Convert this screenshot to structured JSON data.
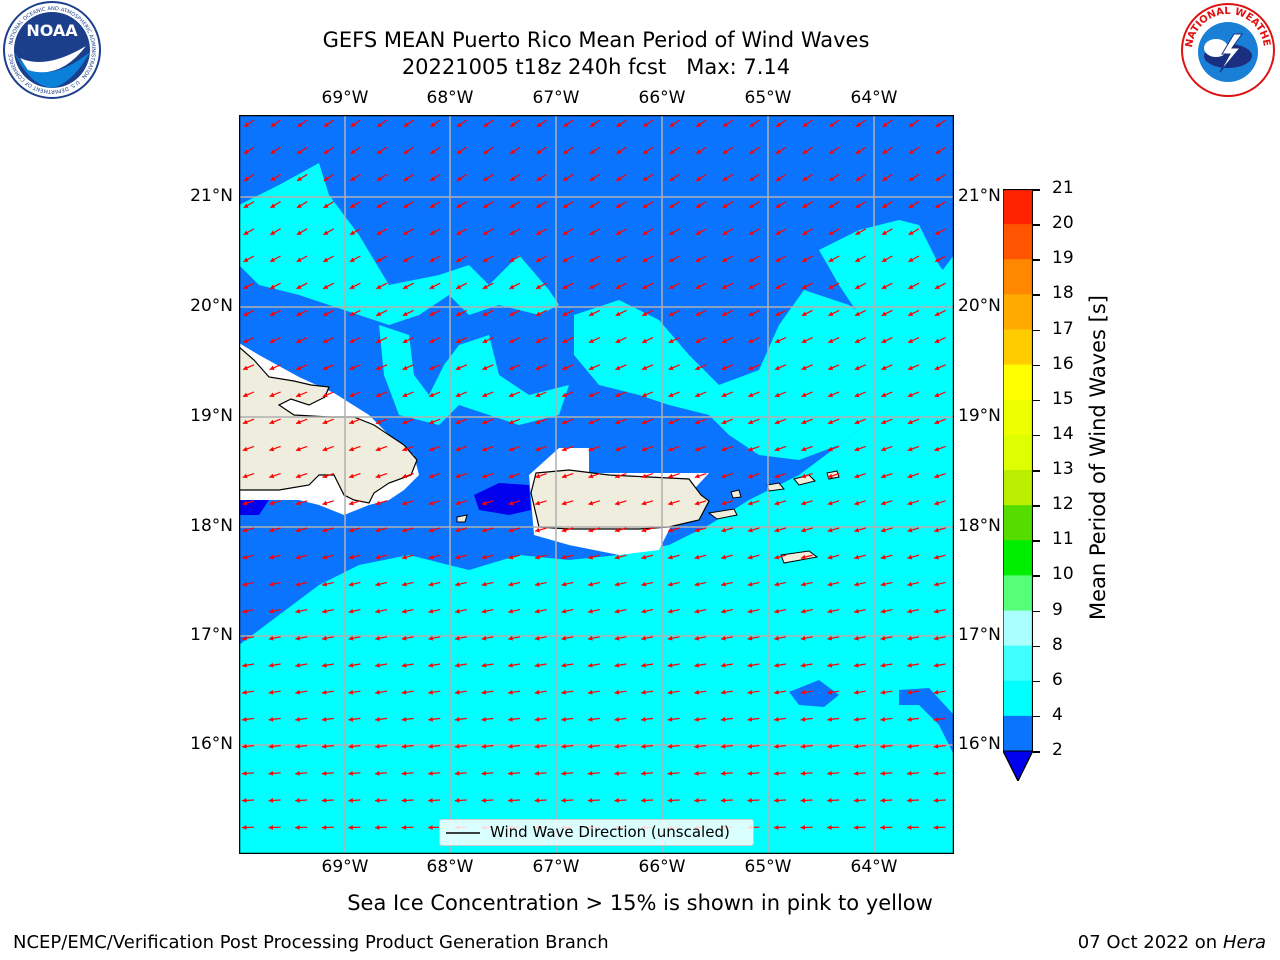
{
  "title": {
    "line1": "GEFS MEAN Puerto Rico Mean Period of Wind Waves",
    "line2": "20221005 t18z 240h fcst   Max: 7.14"
  },
  "logos": {
    "left": "noaa-logo",
    "right": "national-weather-service-logo",
    "left_text": "NOAA",
    "left_ring_text": "NATIONAL OCEANIC AND ATMOSPHERIC ADMINISTRATION · U.S. DEPARTMENT OF COMMERCE",
    "right_ring_text": "NATIONAL WEATHER SERVICE"
  },
  "map": {
    "lon_labels": [
      "69°W",
      "68°W",
      "67°W",
      "66°W",
      "65°W",
      "64°W"
    ],
    "lat_labels": [
      "21°N",
      "20°N",
      "19°N",
      "18°N",
      "17°N",
      "16°N"
    ],
    "legend_label": "Wind Wave Direction (unscaled)",
    "vector_color": "#ff0000",
    "land_color": "#efedde"
  },
  "colorbar": {
    "label": "Mean Period of Wind Waves [s]",
    "ticks": [
      "2",
      "4",
      "6",
      "8",
      "9",
      "10",
      "11",
      "12",
      "13",
      "14",
      "15",
      "16",
      "17",
      "18",
      "19",
      "20",
      "21"
    ],
    "colors": [
      "#0a74ff",
      "#00ffff",
      "#40ffff",
      "#aaffff",
      "#55ff77",
      "#00ee00",
      "#55dd00",
      "#bbee00",
      "#ddff00",
      "#eeff00",
      "#ffff00",
      "#ffcc00",
      "#ffaa00",
      "#ff8800",
      "#ff5500",
      "#ff2200"
    ],
    "under_color": "#0000ee"
  },
  "note": "Sea Ice Concentration > 15% is shown in pink to yellow",
  "footer": {
    "left": "NCEP/EMC/Verification Post Processing Product Generation Branch",
    "right_prefix": "07 Oct 2022 on ",
    "right_host": "Hera"
  }
}
